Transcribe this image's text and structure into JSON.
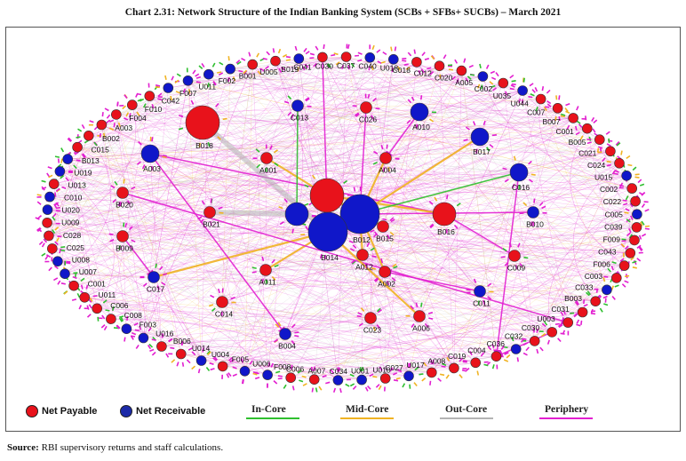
{
  "title": "Chart 2.31: Network Structure of the Indian Banking System (SCBs + SFBs+ SUCBs) – March 2021",
  "colors": {
    "payable": "#e8121b",
    "receivable": "#1017c9",
    "in_core": "#2fbf2f",
    "mid_core": "#f0b323",
    "out_core": "#b4b4b4",
    "periphery": "#e21fd0"
  },
  "legend": {
    "net_payable": "Net Payable",
    "net_receivable": "Net Receivable",
    "in_core": "In-Core",
    "mid_core": "Mid-Core",
    "out_core": "Out-Core",
    "periphery": "Periphery"
  },
  "source_label": "Source:",
  "source_text": " RBI supervisory returns and staff calculations.",
  "nodes": [
    {
      "label": "B012",
      "type": "receivable",
      "size": "xl"
    },
    {
      "label": "B014",
      "type": "receivable",
      "size": "xl"
    },
    {
      "label": "",
      "type": "payable",
      "size": "lg"
    },
    {
      "label": "",
      "type": "receivable",
      "size": "md"
    },
    {
      "label": "B018",
      "type": "payable",
      "size": "lg"
    },
    {
      "label": "B016",
      "type": "payable",
      "size": "md"
    },
    {
      "label": "A003",
      "type": "receivable",
      "size": "sm"
    },
    {
      "label": "C016",
      "type": "receivable",
      "size": "sm"
    },
    {
      "label": "A010",
      "type": "receivable",
      "size": "sm"
    },
    {
      "label": "B017",
      "type": "receivable",
      "size": "sm"
    },
    {
      "label": "B015",
      "type": "payable",
      "size": "xs"
    },
    {
      "label": "A012",
      "type": "payable",
      "size": "xs"
    },
    {
      "label": "A004",
      "type": "payable",
      "size": "xs"
    },
    {
      "label": "A001",
      "type": "payable",
      "size": "xs"
    },
    {
      "label": "C013",
      "type": "receivable",
      "size": "xs"
    },
    {
      "label": "C026",
      "type": "payable",
      "size": "xs"
    },
    {
      "label": "B020",
      "type": "payable",
      "size": "xs"
    },
    {
      "label": "B021",
      "type": "payable",
      "size": "xs"
    },
    {
      "label": "B009",
      "type": "payable",
      "size": "xs"
    },
    {
      "label": "C017",
      "type": "receivable",
      "size": "xs"
    },
    {
      "label": "A011",
      "type": "payable",
      "size": "xs"
    },
    {
      "label": "A002",
      "type": "payable",
      "size": "xs"
    },
    {
      "label": "B010",
      "type": "receivable",
      "size": "xs"
    },
    {
      "label": "C009",
      "type": "payable",
      "size": "xs"
    },
    {
      "label": "C011",
      "type": "receivable",
      "size": "xs"
    },
    {
      "label": "C014",
      "type": "payable",
      "size": "xs"
    },
    {
      "label": "B004",
      "type": "receivable",
      "size": "xs"
    },
    {
      "label": "C023",
      "type": "payable",
      "size": "xs"
    },
    {
      "label": "A006",
      "type": "payable",
      "size": "xs"
    },
    {
      "label": "U011",
      "type": "receivable",
      "size": "t"
    },
    {
      "label": "F002",
      "type": "receivable",
      "size": "t"
    },
    {
      "label": "B001",
      "type": "receivable",
      "size": "t"
    },
    {
      "label": "U005",
      "type": "payable",
      "size": "t"
    },
    {
      "label": "B019",
      "type": "payable",
      "size": "t"
    },
    {
      "label": "C041",
      "type": "receivable",
      "size": "t"
    },
    {
      "label": "C030",
      "type": "payable",
      "size": "t"
    },
    {
      "label": "C037",
      "type": "payable",
      "size": "t"
    },
    {
      "label": "C040",
      "type": "receivable",
      "size": "t"
    },
    {
      "label": "U018",
      "type": "receivable",
      "size": "t"
    },
    {
      "label": "C018",
      "type": "payable",
      "size": "t"
    },
    {
      "label": "C012",
      "type": "payable",
      "size": "t"
    },
    {
      "label": "C020",
      "type": "payable",
      "size": "t"
    },
    {
      "label": "A005",
      "type": "receivable",
      "size": "t"
    },
    {
      "label": "C002",
      "type": "payable",
      "size": "t"
    },
    {
      "label": "U035",
      "type": "receivable",
      "size": "t"
    },
    {
      "label": "U044",
      "type": "payable",
      "size": "t"
    },
    {
      "label": "C007",
      "type": "payable",
      "size": "t"
    },
    {
      "label": "B007",
      "type": "payable",
      "size": "t"
    },
    {
      "label": "C001",
      "type": "payable",
      "size": "t"
    },
    {
      "label": "B005",
      "type": "payable",
      "size": "t"
    },
    {
      "label": "C021",
      "type": "payable",
      "size": "t"
    },
    {
      "label": "C024",
      "type": "payable",
      "size": "t"
    },
    {
      "label": "U015",
      "type": "receivable",
      "size": "t"
    },
    {
      "label": "C002",
      "type": "payable",
      "size": "t"
    },
    {
      "label": "C022",
      "type": "payable",
      "size": "t"
    },
    {
      "label": "C005",
      "type": "receivable",
      "size": "t"
    },
    {
      "label": "C039",
      "type": "payable",
      "size": "t"
    },
    {
      "label": "F009",
      "type": "payable",
      "size": "t"
    },
    {
      "label": "C043",
      "type": "payable",
      "size": "t"
    },
    {
      "label": "F006",
      "type": "payable",
      "size": "t"
    },
    {
      "label": "C003",
      "type": "payable",
      "size": "t"
    },
    {
      "label": "C033",
      "type": "receivable",
      "size": "t"
    },
    {
      "label": "B003",
      "type": "payable",
      "size": "t"
    },
    {
      "label": "C031",
      "type": "payable",
      "size": "t"
    },
    {
      "label": "U003",
      "type": "payable",
      "size": "t"
    },
    {
      "label": "C030",
      "type": "payable",
      "size": "t"
    },
    {
      "label": "C032",
      "type": "payable",
      "size": "t"
    },
    {
      "label": "C036",
      "type": "receivable",
      "size": "t"
    },
    {
      "label": "C004",
      "type": "payable",
      "size": "t"
    },
    {
      "label": "C019",
      "type": "payable",
      "size": "t"
    },
    {
      "label": "A008",
      "type": "payable",
      "size": "t"
    },
    {
      "label": "U017",
      "type": "payable",
      "size": "t"
    },
    {
      "label": "C027",
      "type": "receivable",
      "size": "t"
    },
    {
      "label": "U010",
      "type": "payable",
      "size": "t"
    },
    {
      "label": "U001",
      "type": "receivable",
      "size": "t"
    },
    {
      "label": "C034",
      "type": "receivable",
      "size": "t"
    },
    {
      "label": "A007",
      "type": "payable",
      "size": "t"
    },
    {
      "label": "C006",
      "type": "payable",
      "size": "t"
    },
    {
      "label": "F008",
      "type": "receivable",
      "size": "t"
    },
    {
      "label": "U006",
      "type": "receivable",
      "size": "t"
    },
    {
      "label": "F005",
      "type": "payable",
      "size": "t"
    },
    {
      "label": "U004",
      "type": "receivable",
      "size": "t"
    },
    {
      "label": "U014",
      "type": "payable",
      "size": "t"
    },
    {
      "label": "B006",
      "type": "payable",
      "size": "t"
    },
    {
      "label": "U016",
      "type": "receivable",
      "size": "t"
    },
    {
      "label": "F003",
      "type": "receivable",
      "size": "t"
    },
    {
      "label": "C008",
      "type": "payable",
      "size": "t"
    },
    {
      "label": "C006",
      "type": "payable",
      "size": "t"
    },
    {
      "label": "U011",
      "type": "payable",
      "size": "t"
    },
    {
      "label": "C001",
      "type": "payable",
      "size": "t"
    },
    {
      "label": "U007",
      "type": "receivable",
      "size": "t"
    },
    {
      "label": "U008",
      "type": "receivable",
      "size": "t"
    },
    {
      "label": "C025",
      "type": "payable",
      "size": "t"
    },
    {
      "label": "C028",
      "type": "payable",
      "size": "t"
    },
    {
      "label": "U009",
      "type": "payable",
      "size": "t"
    },
    {
      "label": "U020",
      "type": "receivable",
      "size": "t"
    },
    {
      "label": "C010",
      "type": "receivable",
      "size": "t"
    },
    {
      "label": "U013",
      "type": "payable",
      "size": "t"
    },
    {
      "label": "U019",
      "type": "receivable",
      "size": "t"
    },
    {
      "label": "B013",
      "type": "receivable",
      "size": "t"
    },
    {
      "label": "C015",
      "type": "payable",
      "size": "t"
    },
    {
      "label": "B002",
      "type": "payable",
      "size": "t"
    },
    {
      "label": "A003",
      "type": "payable",
      "size": "t"
    },
    {
      "label": "F004",
      "type": "payable",
      "size": "t"
    },
    {
      "label": "F010",
      "type": "payable",
      "size": "t"
    },
    {
      "label": "C042",
      "type": "payable",
      "size": "t"
    },
    {
      "label": "F007",
      "type": "receivable",
      "size": "t"
    }
  ],
  "highlight_edges": [
    {
      "from": 6,
      "to": 5,
      "kind": "periphery"
    },
    {
      "from": 4,
      "to": 1,
      "kind": "out_core"
    },
    {
      "from": 13,
      "to": 2,
      "kind": "mid_core"
    },
    {
      "from": 12,
      "to": 0,
      "kind": "mid_core"
    },
    {
      "from": 11,
      "to": 0,
      "kind": "mid_core"
    },
    {
      "from": 21,
      "to": 0,
      "kind": "mid_core"
    },
    {
      "from": 20,
      "to": 1,
      "kind": "mid_core"
    },
    {
      "from": 10,
      "to": 2,
      "kind": "mid_core"
    },
    {
      "from": 9,
      "to": 0,
      "kind": "mid_core"
    },
    {
      "from": 14,
      "to": 3,
      "kind": "in_core"
    },
    {
      "from": 5,
      "to": 2,
      "kind": "mid_core"
    },
    {
      "from": 7,
      "to": 0,
      "kind": "in_core"
    },
    {
      "from": 19,
      "to": 1,
      "kind": "mid_core"
    },
    {
      "from": 65,
      "to": 68,
      "kind": "periphery"
    },
    {
      "from": 7,
      "to": 68,
      "kind": "periphery"
    },
    {
      "from": 16,
      "to": 64,
      "kind": "periphery"
    },
    {
      "from": 6,
      "to": 26,
      "kind": "periphery"
    },
    {
      "from": 35,
      "to": 1,
      "kind": "periphery"
    },
    {
      "from": 15,
      "to": 0,
      "kind": "periphery"
    },
    {
      "from": 8,
      "to": 12,
      "kind": "periphery"
    },
    {
      "from": 24,
      "to": 21,
      "kind": "periphery"
    },
    {
      "from": 17,
      "to": 3,
      "kind": "out_core"
    },
    {
      "from": 22,
      "to": 0,
      "kind": "periphery"
    },
    {
      "from": 18,
      "to": 19,
      "kind": "periphery"
    },
    {
      "from": 23,
      "to": 5,
      "kind": "periphery"
    },
    {
      "from": 28,
      "to": 1,
      "kind": "mid_core"
    }
  ]
}
